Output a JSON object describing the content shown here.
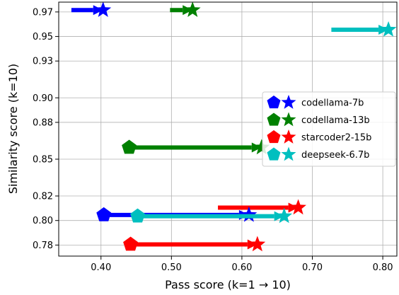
{
  "chart_data": {
    "type": "scatter",
    "xlabel": "Pass score (k=1 → 10)",
    "ylabel": "Similarity score (k=10)",
    "xlim": [
      0.34,
      0.82
    ],
    "ylim": [
      0.771,
      0.978
    ],
    "xticks": [
      0.4,
      0.5,
      0.6,
      0.7,
      0.8
    ],
    "xtick_labels": [
      "0.40",
      "0.50",
      "0.60",
      "0.70",
      "0.80"
    ],
    "yticks": [
      0.78,
      0.8,
      0.82,
      0.85,
      0.88,
      0.9,
      0.93,
      0.95,
      0.97
    ],
    "ytick_labels": [
      "0.78",
      "0.80",
      "0.82",
      "0.85",
      "0.88",
      "0.90",
      "0.93",
      "0.95",
      "0.97"
    ],
    "grid": true,
    "legend_position": "center-right",
    "marker_start": "pentagon",
    "marker_end": "star",
    "series": [
      {
        "name": "codellama-7b",
        "color": "#0000ff",
        "arrows": [
          {
            "from": [
              0.358,
              0.9715
            ],
            "to": [
              0.403,
              0.9715
            ],
            "start_marker": false
          },
          {
            "from": [
              0.404,
              0.8045
            ],
            "to": [
              0.61,
              0.8045
            ],
            "start_marker": true
          }
        ]
      },
      {
        "name": "codellama-13b",
        "color": "#008000",
        "arrows": [
          {
            "from": [
              0.498,
              0.9715
            ],
            "to": [
              0.53,
              0.9715
            ],
            "start_marker": false
          },
          {
            "from": [
              0.44,
              0.8595
            ],
            "to": [
              0.628,
              0.8595
            ],
            "start_marker": true
          }
        ]
      },
      {
        "name": "starcoder2-15b",
        "color": "#ff0000",
        "arrows": [
          {
            "from": [
              0.442,
              0.7805
            ],
            "to": [
              0.622,
              0.7805
            ],
            "start_marker": true
          },
          {
            "from": [
              0.566,
              0.8105
            ],
            "to": [
              0.68,
              0.8105
            ],
            "start_marker": false
          }
        ]
      },
      {
        "name": "deepseek-6.7b",
        "color": "#00bfbf",
        "arrows": [
          {
            "from": [
              0.727,
              0.9555
            ],
            "to": [
              0.808,
              0.9555
            ],
            "start_marker": false
          },
          {
            "from": [
              0.452,
              0.8035
            ],
            "to": [
              0.66,
              0.8035
            ],
            "start_marker": true
          }
        ]
      }
    ]
  }
}
